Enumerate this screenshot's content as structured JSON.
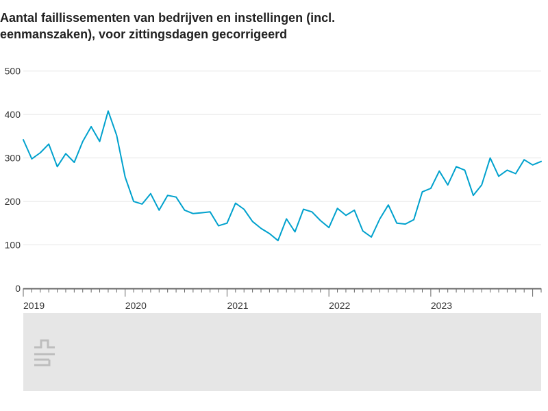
{
  "title_line1": "Aantal faillissementen van bedrijven en instellingen (incl.",
  "title_line2": "eenmanszaken), voor zittingsdagen gecorrigeerd",
  "chart": {
    "type": "line",
    "background_color": "#ffffff",
    "grid_color": "#e5e5e5",
    "axis_color": "#666666",
    "line_color": "#00a1cd",
    "line_width": 2,
    "label_fontsize": 14,
    "label_color": "#333333",
    "y": {
      "min": 0,
      "max": 520,
      "ticks": [
        0,
        100,
        200,
        300,
        400,
        500
      ]
    },
    "x": {
      "year_labels": [
        "2019",
        "2020",
        "2021",
        "2022",
        "2023"
      ],
      "months_per_year": 12,
      "start_index": 0,
      "end_index": 55
    },
    "values": [
      342,
      298,
      312,
      332,
      280,
      310,
      290,
      338,
      372,
      338,
      408,
      352,
      256,
      200,
      194,
      218,
      180,
      214,
      210,
      180,
      172,
      174,
      176,
      144,
      150,
      196,
      182,
      154,
      138,
      126,
      110,
      160,
      130,
      182,
      176,
      156,
      140,
      184,
      168,
      180,
      132,
      118,
      160,
      192,
      150,
      148,
      158,
      222,
      230,
      270,
      238,
      280,
      272,
      214,
      238,
      300
    ],
    "values_tail": [
      258,
      272,
      264,
      296,
      284,
      292
    ],
    "footer_band_color": "#e6e6e6",
    "watermark_color": "#bdbdbd",
    "watermark_text": "CBS"
  }
}
